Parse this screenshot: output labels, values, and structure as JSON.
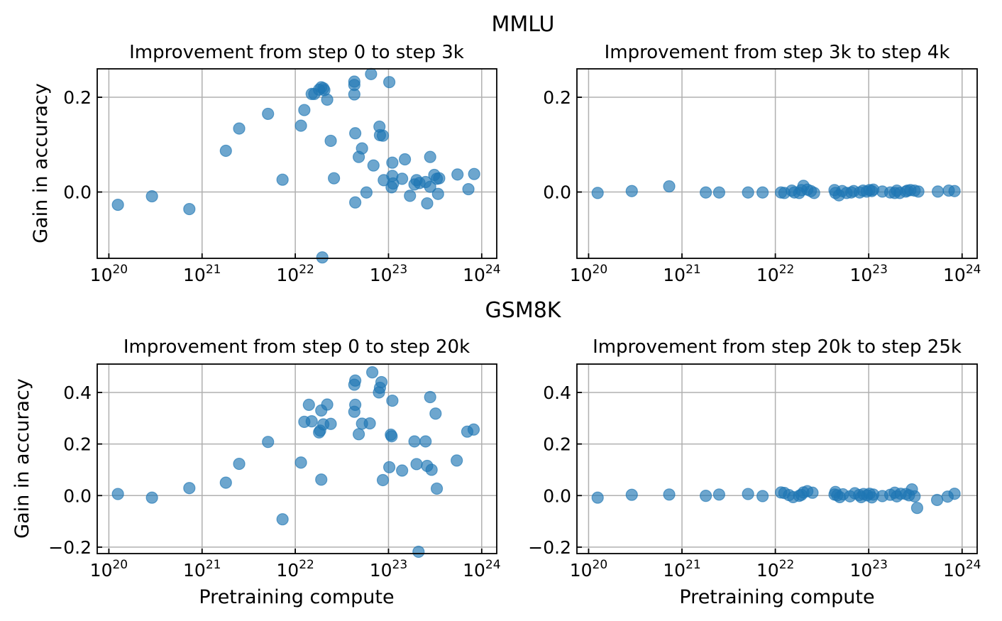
{
  "sections": [
    {
      "title": "MMLU"
    },
    {
      "title": "GSM8K"
    }
  ],
  "chart_data": [
    {
      "type": "scatter",
      "title": "Improvement from step 0 to step 3k",
      "xlabel": "",
      "ylabel": "Gain in accuracy",
      "xscale": "log",
      "xlim": [
        7.5e+19,
        1.45e+24
      ],
      "ylim": [
        -0.14,
        0.26
      ],
      "xticks": [
        1e+20,
        1e+21,
        1e+22,
        1e+23,
        1e+24
      ],
      "xtick_labels": [
        {
          "base": "10",
          "exp": "20"
        },
        {
          "base": "10",
          "exp": "21"
        },
        {
          "base": "10",
          "exp": "22"
        },
        {
          "base": "10",
          "exp": "23"
        },
        {
          "base": "10",
          "exp": "24"
        }
      ],
      "yticks": [
        0.0,
        0.2
      ],
      "ytick_labels": [
        "0.0",
        "0.2"
      ],
      "grid": true,
      "x": [
        1.25e+20,
        2.9e+20,
        7.3e+20,
        1.8e+21,
        2.5e+21,
        5.1e+21,
        7.3e+21,
        1.15e+22,
        1.25e+22,
        1.5e+22,
        1.6e+22,
        1.8e+22,
        1.9e+22,
        2e+22,
        2.05e+22,
        1.95e+22,
        2.2e+22,
        2.4e+22,
        2.6e+22,
        4.3e+22,
        4.3e+22,
        4.3e+22,
        4.4e+22,
        4.4e+22,
        4.8e+22,
        5.2e+22,
        5.8e+22,
        6.5e+22,
        6.9e+22,
        8e+22,
        8.1e+22,
        8.7e+22,
        8.9e+22,
        1.02e+23,
        1.08e+23,
        1.1e+23,
        1.1e+23,
        1.12e+23,
        1.4e+23,
        1.5e+23,
        1.7e+23,
        1.9e+23,
        2e+23,
        2.15e+23,
        2.5e+23,
        2.6e+23,
        2.8e+23,
        2.8e+23,
        3.1e+23,
        3.3e+23,
        3.4e+23,
        3.5e+23,
        5.5e+23,
        7.2e+23,
        8.3e+23
      ],
      "y": [
        -0.027,
        -0.009,
        -0.036,
        0.087,
        0.134,
        0.165,
        0.026,
        0.14,
        0.173,
        0.207,
        0.207,
        0.216,
        0.221,
        0.219,
        0.215,
        -0.138,
        0.195,
        0.108,
        0.029,
        0.206,
        0.226,
        0.233,
        -0.022,
        0.124,
        0.074,
        0.092,
        -0.001,
        0.249,
        0.056,
        0.138,
        0.12,
        0.119,
        0.025,
        0.232,
        0.01,
        0.034,
        0.062,
        0.018,
        0.028,
        0.069,
        -0.008,
        0.016,
        0.025,
        0.019,
        0.021,
        -0.024,
        0.011,
        0.074,
        0.036,
        0.028,
        -0.004,
        0.029,
        0.037,
        0.006,
        0.038
      ]
    },
    {
      "type": "scatter",
      "title": "Improvement from step 3k to step 4k",
      "xlabel": "",
      "ylabel": "",
      "xscale": "log",
      "xlim": [
        7.5e+19,
        1.45e+24
      ],
      "ylim": [
        -0.14,
        0.26
      ],
      "xticks": [
        1e+20,
        1e+21,
        1e+22,
        1e+23,
        1e+24
      ],
      "xtick_labels": [
        {
          "base": "10",
          "exp": "20"
        },
        {
          "base": "10",
          "exp": "21"
        },
        {
          "base": "10",
          "exp": "22"
        },
        {
          "base": "10",
          "exp": "23"
        },
        {
          "base": "10",
          "exp": "24"
        }
      ],
      "yticks": [
        0.0,
        0.2
      ],
      "ytick_labels": [
        "0.0",
        "0.2"
      ],
      "grid": true,
      "x": [
        1.25e+20,
        2.9e+20,
        7.3e+20,
        1.8e+21,
        2.5e+21,
        5.1e+21,
        7.3e+21,
        1.15e+22,
        1.25e+22,
        1.5e+22,
        1.6e+22,
        1.8e+22,
        1.9e+22,
        2e+22,
        2.2e+22,
        2.4e+22,
        2.6e+22,
        4.3e+22,
        4.4e+22,
        4.8e+22,
        5.2e+22,
        5.8e+22,
        6.5e+22,
        6.9e+22,
        8e+22,
        8.7e+22,
        9.5e+22,
        1.02e+23,
        1.08e+23,
        1.12e+23,
        1.4e+23,
        1.7e+23,
        1.9e+23,
        2e+23,
        2.15e+23,
        2.5e+23,
        2.6e+23,
        2.8e+23,
        3.1e+23,
        3.4e+23,
        5.5e+23,
        7.2e+23,
        8.3e+23
      ],
      "y": [
        -0.002,
        0.002,
        0.012,
        -0.001,
        -0.001,
        -0.001,
        -0.001,
        -0.001,
        -0.002,
        0.003,
        -0.001,
        -0.002,
        0.004,
        0.013,
        0.005,
        0.002,
        -0.002,
        0.004,
        -0.002,
        -0.007,
        0.002,
        -0.002,
        -0.001,
        0.002,
        -0.001,
        0.003,
        0.001,
        0.004,
        0.002,
        0.005,
        0.001,
        -0.001,
        -0.002,
        0.003,
        -0.002,
        0.001,
        0.003,
        0.004,
        0.003,
        0.001,
        0.001,
        0.003,
        0.002
      ]
    },
    {
      "type": "scatter",
      "title": "Improvement from step 0 to step 20k",
      "xlabel": "Pretraining compute",
      "ylabel": "Gain in accuracy",
      "xscale": "log",
      "xlim": [
        7.5e+19,
        1.45e+24
      ],
      "ylim": [
        -0.225,
        0.51
      ],
      "xticks": [
        1e+20,
        1e+21,
        1e+22,
        1e+23,
        1e+24
      ],
      "xtick_labels": [
        {
          "base": "10",
          "exp": "20"
        },
        {
          "base": "10",
          "exp": "21"
        },
        {
          "base": "10",
          "exp": "22"
        },
        {
          "base": "10",
          "exp": "23"
        },
        {
          "base": "10",
          "exp": "24"
        }
      ],
      "yticks": [
        -0.2,
        0.0,
        0.2,
        0.4
      ],
      "ytick_labels": [
        "−0.2",
        "0.0",
        "0.2",
        "0.4"
      ],
      "grid": true,
      "x": [
        1.25e+20,
        2.9e+20,
        7.3e+20,
        1.8e+21,
        2.5e+21,
        5.1e+21,
        7.3e+21,
        1.15e+22,
        1.25e+22,
        1.4e+22,
        1.5e+22,
        1.8e+22,
        1.85e+22,
        1.9e+22,
        1.9e+22,
        2e+22,
        2.2e+22,
        2.4e+22,
        4.3e+22,
        4.3e+22,
        4.4e+22,
        4.4e+22,
        4.8e+22,
        5.2e+22,
        6.3e+22,
        6.7e+22,
        7.9e+22,
        8.1e+22,
        8.4e+22,
        8.7e+22,
        1.02e+23,
        1.06e+23,
        1.08e+23,
        1.1e+23,
        1.4e+23,
        1.9e+23,
        2e+23,
        2.1e+23,
        2.5e+23,
        2.6e+23,
        2.8e+23,
        2.9e+23,
        3.2e+23,
        3.3e+23,
        5.4e+23,
        7e+23,
        8.2e+23
      ],
      "y": [
        0.006,
        -0.008,
        0.029,
        0.05,
        0.123,
        0.208,
        -0.092,
        0.128,
        0.286,
        0.352,
        0.288,
        0.245,
        0.252,
        0.062,
        0.33,
        0.276,
        0.353,
        0.278,
        0.43,
        0.325,
        0.352,
        0.446,
        0.238,
        0.279,
        0.28,
        0.478,
        0.4,
        0.418,
        0.44,
        0.06,
        0.11,
        0.236,
        0.23,
        0.368,
        0.097,
        0.21,
        0.122,
        -0.218,
        0.21,
        0.115,
        0.382,
        0.1,
        0.318,
        0.027,
        0.136,
        0.248,
        0.256
      ]
    },
    {
      "type": "scatter",
      "title": "Improvement from step 20k to step 25k",
      "xlabel": "Pretraining compute",
      "ylabel": "",
      "xscale": "log",
      "xlim": [
        7.5e+19,
        1.45e+24
      ],
      "ylim": [
        -0.225,
        0.51
      ],
      "xticks": [
        1e+20,
        1e+21,
        1e+22,
        1e+23,
        1e+24
      ],
      "xtick_labels": [
        {
          "base": "10",
          "exp": "20"
        },
        {
          "base": "10",
          "exp": "21"
        },
        {
          "base": "10",
          "exp": "22"
        },
        {
          "base": "10",
          "exp": "23"
        },
        {
          "base": "10",
          "exp": "24"
        }
      ],
      "yticks": [
        -0.2,
        0.0,
        0.2,
        0.4
      ],
      "ytick_labels": [
        "−0.2",
        "0.0",
        "0.2",
        "0.4"
      ],
      "grid": true,
      "x": [
        1.25e+20,
        2.9e+20,
        7.3e+20,
        1.8e+21,
        2.5e+21,
        5.1e+21,
        7.3e+21,
        1.15e+22,
        1.25e+22,
        1.4e+22,
        1.55e+22,
        1.8e+22,
        1.9e+22,
        2e+22,
        2.2e+22,
        2.5e+22,
        4.3e+22,
        4.4e+22,
        4.6e+22,
        4.9e+22,
        5.3e+22,
        6.3e+22,
        7.1e+22,
        7.9e+22,
        8.3e+22,
        8.8e+22,
        9.6e+22,
        1.02e+23,
        1.08e+23,
        1.12e+23,
        1.4e+23,
        1.7e+23,
        1.9e+23,
        2e+23,
        2.2e+23,
        2.5e+23,
        2.7e+23,
        2.9e+23,
        3.1e+23,
        3.3e+23,
        5.4e+23,
        7e+23,
        8.3e+23
      ],
      "y": [
        -0.008,
        0.003,
        0.004,
        -0.001,
        0.004,
        0.006,
        -0.002,
        0.012,
        0.01,
        0.002,
        -0.006,
        -0.001,
        0.003,
        0.012,
        0.017,
        0.011,
        0.004,
        0.014,
        0.001,
        -0.006,
        0.005,
        -0.003,
        0.009,
        0.002,
        -0.006,
        0.006,
        0.001,
        0.007,
        -0.007,
        0.004,
        -0.002,
        0.003,
        0.011,
        -0.003,
        0.007,
        0.006,
        0.001,
        0.024,
        -0.003,
        -0.048,
        -0.017,
        -0.004,
        0.007
      ]
    }
  ]
}
